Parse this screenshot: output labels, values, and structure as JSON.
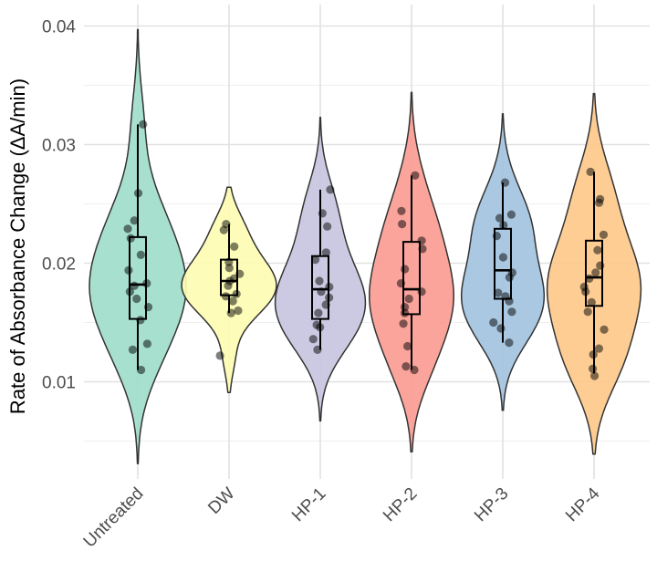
{
  "chart_data": {
    "type": "violin",
    "title": "",
    "xlabel": "",
    "ylabel": "Rate of Absorbance Change (ΔA/min)",
    "ylim": [
      0.0005,
      0.0415
    ],
    "y_ticks": [
      "0.01",
      "0.02",
      "0.03",
      "0.04"
    ],
    "grid": true,
    "legend": "none",
    "categories": [
      "Untreated",
      "DW",
      "HP-1",
      "HP-2",
      "HP-3",
      "HP-4"
    ],
    "series": [
      {
        "name": "Untreated",
        "color": "#9fddcb",
        "box": {
          "q1": 0.0153,
          "median": 0.0182,
          "q3": 0.0222,
          "whisker_low": 0.011,
          "whisker_high": 0.0317
        },
        "violin_range": [
          0.0031,
          0.0397
        ],
        "points": [
          0.0317,
          0.0259,
          0.0236,
          0.0229,
          0.0221,
          0.0207,
          0.0194,
          0.0183,
          0.0181,
          0.0176,
          0.017,
          0.0163,
          0.0152,
          0.0132,
          0.0127,
          0.011
        ]
      },
      {
        "name": "DW",
        "color": "#fdfcb2",
        "box": {
          "q1": 0.0173,
          "median": 0.0185,
          "q3": 0.0203,
          "whisker_low": 0.0158,
          "whisker_high": 0.0233
        },
        "violin_range": [
          0.0091,
          0.0264
        ],
        "points": [
          0.0233,
          0.0228,
          0.0214,
          0.0201,
          0.0196,
          0.0191,
          0.0187,
          0.0185,
          0.0181,
          0.0174,
          0.0172,
          0.0168,
          0.016,
          0.0158,
          0.0122
        ]
      },
      {
        "name": "HP-1",
        "color": "#c8c5df",
        "box": {
          "q1": 0.0153,
          "median": 0.0178,
          "q3": 0.0206,
          "whisker_low": 0.0127,
          "whisker_high": 0.0262
        },
        "violin_range": [
          0.0067,
          0.0323
        ],
        "points": [
          0.0262,
          0.0242,
          0.0231,
          0.0209,
          0.0203,
          0.0185,
          0.018,
          0.0176,
          0.0171,
          0.0165,
          0.0158,
          0.0148,
          0.0146,
          0.0136,
          0.0127
        ]
      },
      {
        "name": "HP-2",
        "color": "#fa9c94",
        "box": {
          "q1": 0.0157,
          "median": 0.0178,
          "q3": 0.0218,
          "whisker_low": 0.011,
          "whisker_high": 0.0274
        },
        "violin_range": [
          0.0041,
          0.0344
        ],
        "points": [
          0.0274,
          0.0244,
          0.0233,
          0.0219,
          0.0212,
          0.0195,
          0.0183,
          0.0176,
          0.017,
          0.0163,
          0.0158,
          0.0149,
          0.013,
          0.0113,
          0.011
        ]
      },
      {
        "name": "HP-3",
        "color": "#a3c3de",
        "box": {
          "q1": 0.017,
          "median": 0.0194,
          "q3": 0.0229,
          "whisker_low": 0.0133,
          "whisker_high": 0.0268
        },
        "violin_range": [
          0.0076,
          0.0326
        ],
        "points": [
          0.0268,
          0.0241,
          0.0238,
          0.0232,
          0.0223,
          0.0205,
          0.0192,
          0.0188,
          0.0175,
          0.0172,
          0.0168,
          0.0159,
          0.015,
          0.0145,
          0.0133
        ]
      },
      {
        "name": "HP-4",
        "color": "#fdc98b",
        "box": {
          "q1": 0.0164,
          "median": 0.0188,
          "q3": 0.0219,
          "whisker_low": 0.0107,
          "whisker_high": 0.0277
        },
        "violin_range": [
          0.0039,
          0.0343
        ],
        "points": [
          0.0277,
          0.0254,
          0.0251,
          0.0224,
          0.0211,
          0.0198,
          0.0192,
          0.0187,
          0.018,
          0.0176,
          0.0167,
          0.0159,
          0.0144,
          0.0128,
          0.0123,
          0.0111,
          0.0105
        ]
      }
    ]
  }
}
